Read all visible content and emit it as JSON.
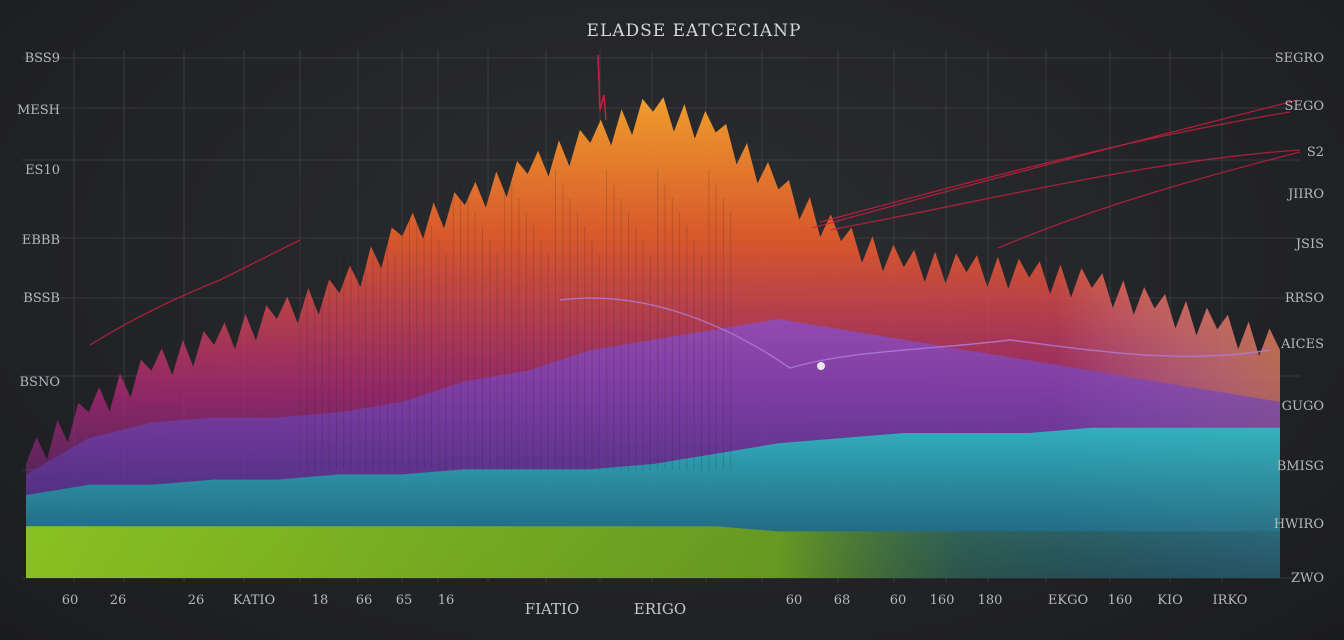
{
  "chart_data": {
    "type": "area",
    "title": "ELADSE EATCECIANP",
    "xlabel": "",
    "ylabel": "",
    "x_tick_labels": [
      "60",
      "26",
      "26",
      "KATIO",
      "18",
      "66",
      "65",
      "16",
      "60",
      "68",
      "60",
      "160",
      "180",
      "EKGO",
      "160",
      "KIO",
      "IRKO"
    ],
    "x_axis_captions": [
      "FIATIO",
      "ERIGO"
    ],
    "y_left_ticks": [
      "BSS9",
      "MESH",
      "ES10",
      "EBBB",
      "BSSB",
      "BSNO"
    ],
    "y_right_ticks": [
      "SEGRO",
      "SEGO",
      "S2",
      "JIIRO",
      "JSIS",
      "RRSO",
      "AICES",
      "GUGO",
      "BMISG",
      "HWIRO",
      "ZWO"
    ],
    "grid": true,
    "legend": "none",
    "ylim": [
      0,
      100
    ],
    "x": [
      0,
      5,
      10,
      15,
      20,
      25,
      30,
      35,
      40,
      45,
      50,
      55,
      60,
      65,
      70,
      75,
      80,
      85,
      90,
      95,
      100
    ],
    "series": [
      {
        "values": [
          10,
          10,
          10,
          10,
          10,
          10,
          10,
          10,
          10,
          10,
          10,
          10,
          9,
          9,
          9,
          9,
          9,
          9,
          9,
          9,
          9
        ]
      },
      {
        "values": [
          16,
          18,
          18,
          19,
          19,
          20,
          20,
          21,
          21,
          21,
          22,
          24,
          26,
          27,
          28,
          28,
          28,
          29,
          29,
          29,
          29
        ]
      },
      {
        "values": [
          20,
          27,
          30,
          31,
          31,
          32,
          34,
          38,
          40,
          44,
          46,
          48,
          50,
          48,
          46,
          44,
          42,
          40,
          38,
          36,
          34
        ]
      },
      {
        "values": [
          22,
          32,
          40,
          45,
          50,
          55,
          66,
          72,
          78,
          84,
          90,
          86,
          75,
          65,
          60,
          59,
          58,
          56,
          52,
          48,
          44
        ]
      }
    ],
    "colors": {
      "lime": "#8fc21a",
      "teal": "#1fb7b8",
      "violet": "#7b3fb3",
      "warm_top": "#f39a2c",
      "warm_mid": "#e04a2a",
      "warm_low": "#b52a7a",
      "red_lines": "#c6213e",
      "accent_line": "#b07ad8"
    }
  }
}
